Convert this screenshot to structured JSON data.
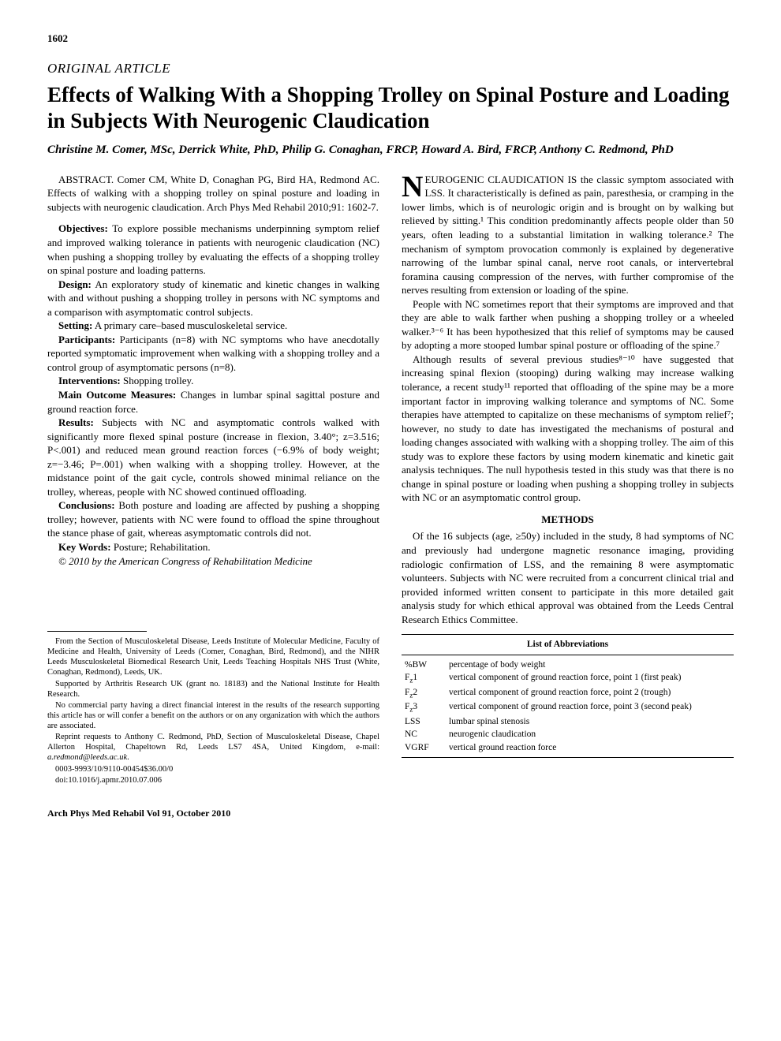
{
  "page_number": "1602",
  "article_type": "ORIGINAL ARTICLE",
  "title": "Effects of Walking With a Shopping Trolley on Spinal Posture and Loading in Subjects With Neurogenic Claudication",
  "authors": "Christine M. Comer, MSc, Derrick White, PhD, Philip G. Conaghan, FRCP, Howard A. Bird, FRCP, Anthony C. Redmond, PhD",
  "abstract": {
    "citation": "ABSTRACT. Comer CM, White D, Conaghan PG, Bird HA, Redmond AC. Effects of walking with a shopping trolley on spinal posture and loading in subjects with neurogenic claudication. Arch Phys Med Rehabil 2010;91: 1602-7.",
    "objectives_label": "Objectives:",
    "objectives": " To explore possible mechanisms underpinning symptom relief and improved walking tolerance in patients with neurogenic claudication (NC) when pushing a shopping trolley by evaluating the effects of a shopping trolley on spinal posture and loading patterns.",
    "design_label": "Design:",
    "design": " An exploratory study of kinematic and kinetic changes in walking with and without pushing a shopping trolley in persons with NC symptoms and a comparison with asymptomatic control subjects.",
    "setting_label": "Setting:",
    "setting": " A primary care–based musculoskeletal service.",
    "participants_label": "Participants:",
    "participants": " Participants (n=8) with NC symptoms who have anecdotally reported symptomatic improvement when walking with a shopping trolley and a control group of asymptomatic persons (n=8).",
    "interventions_label": "Interventions:",
    "interventions": " Shopping trolley.",
    "outcomes_label": "Main Outcome Measures:",
    "outcomes": " Changes in lumbar spinal sagittal posture and ground reaction force.",
    "results_label": "Results:",
    "results": " Subjects with NC and asymptomatic controls walked with significantly more flexed spinal posture (increase in flexion, 3.40°; z=3.516; P<.001) and reduced mean ground reaction forces (−6.9% of body weight; z=−3.46; P=.001) when walking with a shopping trolley. However, at the midstance point of the gait cycle, controls showed minimal reliance on the trolley, whereas, people with NC showed continued offloading.",
    "conclusions_label": "Conclusions:",
    "conclusions": " Both posture and loading are affected by pushing a shopping trolley; however, patients with NC were found to offload the spine throughout the stance phase of gait, whereas asymptomatic controls did not.",
    "keywords_label": "Key Words:",
    "keywords": " Posture; Rehabilitation.",
    "copyright": "© 2010 by the American Congress of Rehabilitation Medicine"
  },
  "body": {
    "p1_dropcap": "N",
    "p1": "EUROGENIC CLAUDICATION IS the classic symptom associated with LSS. It characteristically is defined as pain, paresthesia, or cramping in the lower limbs, which is of neurologic origin and is brought on by walking but relieved by sitting.¹ This condition predominantly affects people older than 50 years, often leading to a substantial limitation in walking tolerance.² The mechanism of symptom provocation commonly is explained by degenerative narrowing of the lumbar spinal canal, nerve root canals, or intervertebral foramina causing compression of the nerves, with further compromise of the nerves resulting from extension or loading of the spine.",
    "p2": "People with NC sometimes report that their symptoms are improved and that they are able to walk farther when pushing a shopping trolley or a wheeled walker.³⁻⁶ It has been hypothesized that this relief of symptoms may be caused by adopting a more stooped lumbar spinal posture or offloading of the spine.⁷",
    "p3": "Although results of several previous studies⁸⁻¹⁰ have suggested that increasing spinal flexion (stooping) during walking may increase walking tolerance, a recent study¹¹ reported that offloading of the spine may be a more important factor in improving walking tolerance and symptoms of NC. Some therapies have attempted to capitalize on these mechanisms of symptom relief⁷; however, no study to date has investigated the mechanisms of postural and loading changes associated with walking with a shopping trolley. The aim of this study was to explore these factors by using modern kinematic and kinetic gait analysis techniques. The null hypothesis tested in this study was that there is no change in spinal posture or loading when pushing a shopping trolley in subjects with NC or an asymptomatic control group.",
    "methods_heading": "METHODS",
    "p4": "Of the 16 subjects (age, ≥50y) included in the study, 8 had symptoms of NC and previously had undergone magnetic resonance imaging, providing radiologic confirmation of LSS, and the remaining 8 were asymptomatic volunteers. Subjects with NC were recruited from a concurrent clinical trial and provided informed written consent to participate in this more detailed gait analysis study for which ethical approval was obtained from the Leeds Central Research Ethics Committee."
  },
  "footnotes": {
    "f1": "From the Section of Musculoskeletal Disease, Leeds Institute of Molecular Medicine, Faculty of Medicine and Health, University of Leeds (Comer, Conaghan, Bird, Redmond), and the NIHR Leeds Musculoskeletal Biomedical Research Unit, Leeds Teaching Hospitals NHS Trust (White, Conaghan, Redmond), Leeds, UK.",
    "f2": "Supported by Arthritis Research UK (grant no. 18183) and the National Institute for Health Research.",
    "f3": "No commercial party having a direct financial interest in the results of the research supporting this article has or will confer a benefit on the authors or on any organization with which the authors are associated.",
    "f4_pre": "Reprint requests to Anthony C. Redmond, PhD, Section of Musculoskeletal Disease, Chapel Allerton Hospital, Chapeltown Rd, Leeds LS7 4SA, United Kingdom, e-mail: ",
    "f4_email": "a.redmond@leeds.ac.uk",
    "f4_post": ".",
    "f5": "0003-9993/10/9110-00454$36.00/0",
    "f6": "doi:10.1016/j.apmr.2010.07.006"
  },
  "abbreviations": {
    "title": "List of Abbreviations",
    "rows": [
      {
        "key": "%BW",
        "def": "percentage of body weight"
      },
      {
        "key": "Fz1",
        "def": "vertical component of ground reaction force, point 1 (first peak)"
      },
      {
        "key": "Fz2",
        "def": "vertical component of ground reaction force, point 2 (trough)"
      },
      {
        "key": "Fz3",
        "def": "vertical component of ground reaction force, point 3 (second peak)"
      },
      {
        "key": "LSS",
        "def": "lumbar spinal stenosis"
      },
      {
        "key": "NC",
        "def": "neurogenic claudication"
      },
      {
        "key": "VGRF",
        "def": "vertical ground reaction force"
      }
    ]
  },
  "footer": "Arch Phys Med Rehabil Vol 91, October 2010"
}
